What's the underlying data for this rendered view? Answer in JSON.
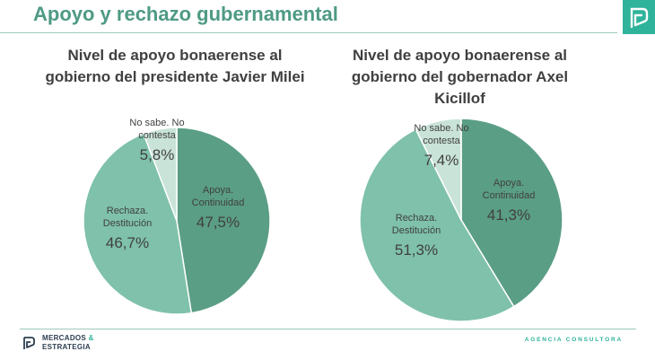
{
  "page": {
    "title": "Apoyo y rechazo gubernamental",
    "brand_line1": "MERCADOS",
    "brand_amp": "&",
    "brand_line2": "ESTRATEGIA",
    "agency": "AGENCIA CONSULTORA"
  },
  "colors": {
    "title": "#4e9a84",
    "accent": "#2fb39a",
    "apoya": "#5a9e85",
    "rechaza": "#7fc1aa",
    "nosabe": "#c9e3d8"
  },
  "chart_data": [
    {
      "type": "pie",
      "title": "Nivel de apoyo bonaerense al gobierno del presidente Javier Milei",
      "slices": [
        {
          "label": [
            "Apoya.",
            "Continuidad"
          ],
          "value": 47.5,
          "value_label": "47,5%",
          "color": "#5a9e85"
        },
        {
          "label": [
            "Rechaza.",
            "Destitución"
          ],
          "value": 46.7,
          "value_label": "46,7%",
          "color": "#7fc1aa"
        },
        {
          "label": [
            "No sabe. No",
            "contesta"
          ],
          "value": 5.8,
          "value_label": "5,8%",
          "color": "#c9e3d8"
        }
      ]
    },
    {
      "type": "pie",
      "title": "Nivel de apoyo bonaerense al gobierno del gobernador Axel Kicillof",
      "slices": [
        {
          "label": [
            "Apoya.",
            "Continuidad"
          ],
          "value": 41.3,
          "value_label": "41,3%",
          "color": "#5a9e85"
        },
        {
          "label": [
            "Rechaza.",
            "Destitución"
          ],
          "value": 51.3,
          "value_label": "51,3%",
          "color": "#7fc1aa"
        },
        {
          "label": [
            "No sabe. No",
            "contesta"
          ],
          "value": 7.4,
          "value_label": "7,4%",
          "color": "#c9e3d8"
        }
      ]
    }
  ]
}
